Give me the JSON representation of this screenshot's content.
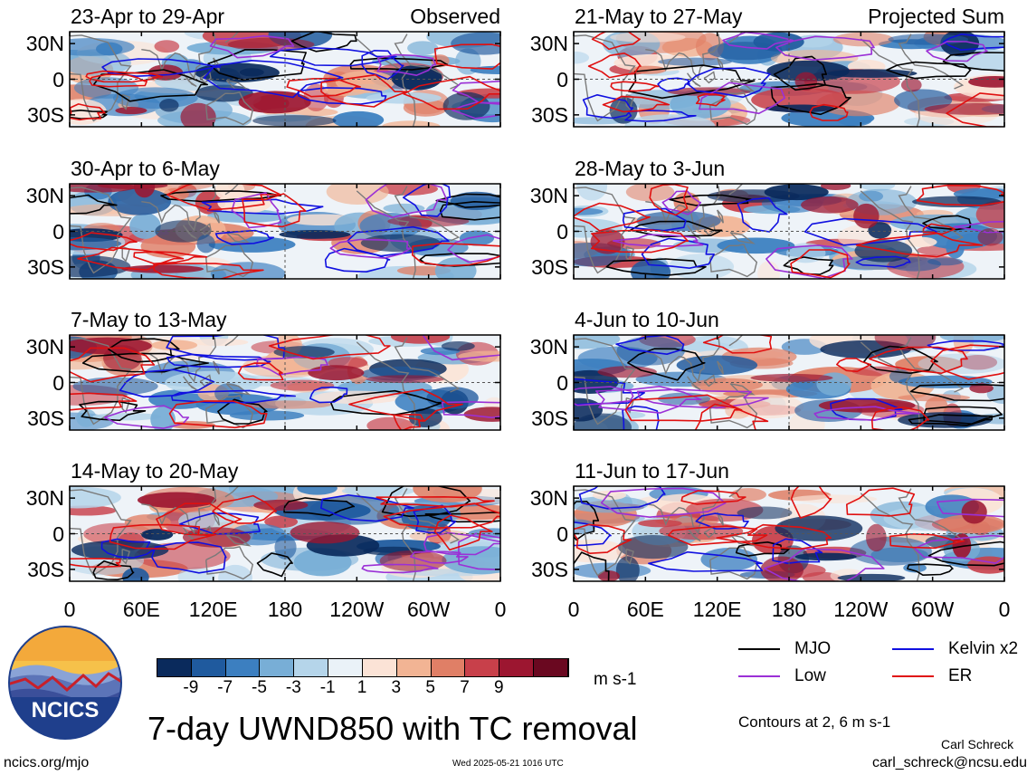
{
  "chart_data": {
    "type": "heatmap",
    "title": "7-day UWND850 with TC removal",
    "units": "m s-1",
    "contours_note": "Contours at 2, 6 m s-1",
    "lat_ticks": [
      "30N",
      "0",
      "30S"
    ],
    "lon_ticks": [
      "0",
      "60E",
      "120E",
      "180",
      "120W",
      "60W",
      "0"
    ],
    "colorbar": {
      "tick_labels": [
        "-9",
        "-7",
        "-5",
        "-3",
        "-1",
        "1",
        "3",
        "5",
        "7",
        "9"
      ],
      "colors": [
        "#0a2a5c",
        "#1f5a9e",
        "#3c7fc0",
        "#78aed6",
        "#b5d5ea",
        "#eaf2f8",
        "#fbe3d6",
        "#f2b494",
        "#e07f66",
        "#c8404a",
        "#9c1630",
        "#6a0820"
      ]
    },
    "legend": [
      {
        "label": "MJO",
        "color": "#000000"
      },
      {
        "label": "Kelvin x2",
        "color": "#1010e0"
      },
      {
        "label": "Low",
        "color": "#9b30d6"
      },
      {
        "label": "ER",
        "color": "#e01010"
      }
    ],
    "panels": [
      {
        "label": "23-Apr to 29-Apr",
        "corner": "Observed",
        "col": 0,
        "row": 0
      },
      {
        "label": "30-Apr to 6-May",
        "corner": "",
        "col": 0,
        "row": 1
      },
      {
        "label": "7-May to 13-May",
        "corner": "",
        "col": 0,
        "row": 2
      },
      {
        "label": "14-May to 20-May",
        "corner": "",
        "col": 0,
        "row": 3
      },
      {
        "label": "21-May to 27-May",
        "corner": "Projected Sum",
        "col": 1,
        "row": 0
      },
      {
        "label": "28-May to 3-Jun",
        "corner": "",
        "col": 1,
        "row": 1
      },
      {
        "label": "4-Jun to 10-Jun",
        "corner": "",
        "col": 1,
        "row": 2
      },
      {
        "label": "11-Jun to 17-Jun",
        "corner": "",
        "col": 1,
        "row": 3
      }
    ]
  },
  "logo": {
    "text": "NCICS"
  },
  "footer": {
    "left": "ncics.org/mjo",
    "timestamp": "Wed 2025-05-21 1016 UTC",
    "author": "Carl Schreck",
    "email": "carl_schreck@ncsu.edu"
  }
}
